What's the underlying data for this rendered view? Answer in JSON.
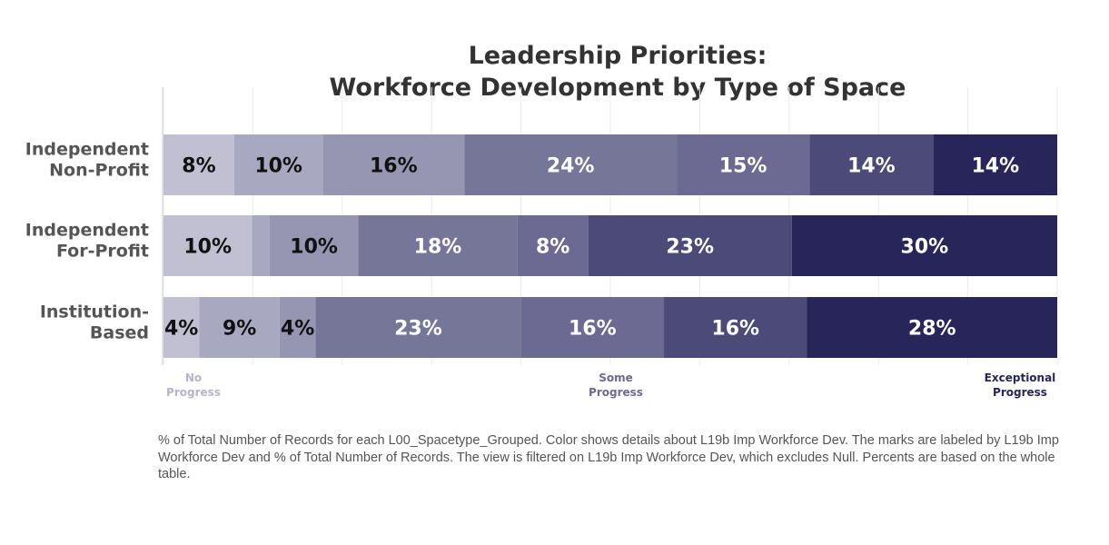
{
  "chart_data": {
    "type": "bar",
    "orientation": "horizontal",
    "stacked": true,
    "title": [
      "Leadership Priorities:",
      "Workforce Development by Type of Space"
    ],
    "categories": [
      "Independent Non-Profit",
      "Independent For-Profit",
      "Institution-Based"
    ],
    "category_lines": [
      [
        "Independent",
        "Non-Profit"
      ],
      [
        "Independent",
        "For-Profit"
      ],
      [
        "Institution-",
        "Based"
      ]
    ],
    "series": [
      {
        "color": "#c1c0d3",
        "values": [
          8,
          10,
          4
        ]
      },
      {
        "color": "#a9a8c1",
        "values": [
          10,
          2,
          9
        ]
      },
      {
        "color": "#9796b2",
        "values": [
          16,
          10,
          4
        ]
      },
      {
        "color": "#767698",
        "values": [
          24,
          18,
          23
        ]
      },
      {
        "color": "#6c6a92",
        "values": [
          15,
          8,
          16
        ]
      },
      {
        "color": "#4b4a78",
        "values": [
          14,
          23,
          16
        ]
      },
      {
        "color": "#27255a",
        "values": [
          14,
          30,
          28
        ]
      }
    ],
    "labels": [
      [
        "8%",
        "10%",
        "16%",
        "24%",
        "15%",
        "14%",
        "14%"
      ],
      [
        "10%",
        "",
        "10%",
        "18%",
        "8%",
        "23%",
        "30%"
      ],
      [
        "4%",
        "9%",
        "4%",
        "23%",
        "16%",
        "16%",
        "28%"
      ]
    ],
    "scale_labels": [
      {
        "lines": [
          "No",
          "Progress"
        ],
        "color": "#b6b5c8"
      },
      {
        "lines": [
          "Some",
          "Progress"
        ],
        "color": "#6c6a92"
      },
      {
        "lines": [
          "Exceptional",
          "Progress"
        ],
        "color": "#27255a"
      }
    ],
    "grid": true
  },
  "footnote": "% of Total Number of Records for each L00_Spacetype_Grouped.  Color shows details about L19b Imp Workforce Dev. The marks are labeled by L19b Imp Workforce Dev and % of Total Number of Records. The view is filtered on L19b Imp Workforce Dev, which excludes Null. Percents are based on the whole table."
}
